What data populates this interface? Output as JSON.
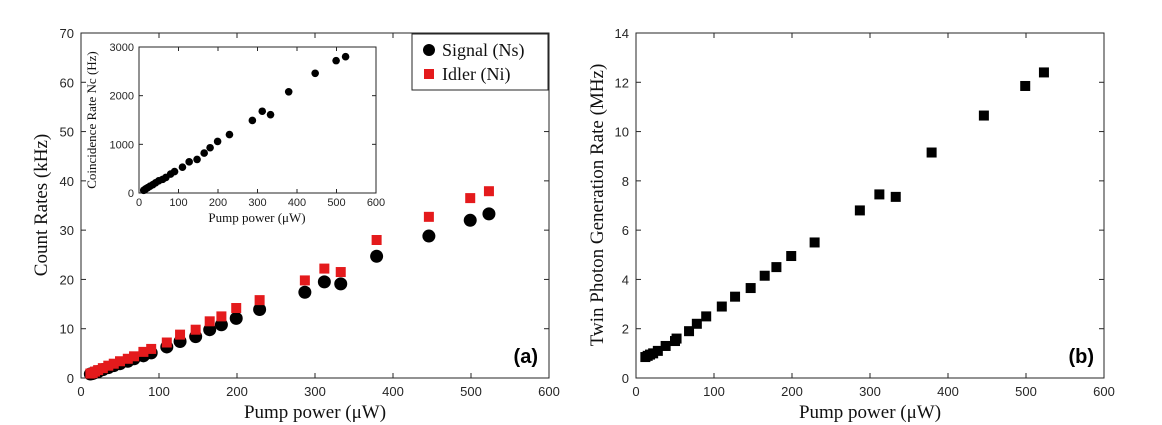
{
  "colors": {
    "signal": "#000000",
    "idler": "#e41a1c",
    "twin": "#000000"
  },
  "chart_data": [
    {
      "type": "scatter",
      "panel_label": "(a)",
      "xlabel": "Pump power (μW)",
      "ylabel": "Count Rates (kHz)",
      "xlim": [
        0,
        600
      ],
      "ylim": [
        0,
        70
      ],
      "xticks": [
        "0",
        "100",
        "200",
        "300",
        "400",
        "500",
        "600"
      ],
      "yticks": [
        "0",
        "10",
        "20",
        "30",
        "40",
        "50",
        "60",
        "70"
      ],
      "legend_position": "top-right",
      "grid": false,
      "series": [
        {
          "name": "Signal (Ns)",
          "marker": "circle",
          "x": [
            12,
            15,
            18,
            22,
            28,
            35,
            42,
            50,
            60,
            68,
            80,
            90,
            110,
            127,
            147,
            165,
            180,
            199,
            229,
            287,
            312,
            333,
            379,
            446,
            499,
            523
          ],
          "y": [
            0.8,
            0.9,
            1.1,
            1.3,
            1.7,
            2.1,
            2.5,
            2.9,
            3.4,
            3.9,
            4.5,
            5.1,
            6.3,
            7.4,
            8.4,
            9.8,
            10.8,
            12.1,
            13.9,
            17.4,
            19.5,
            19.1,
            24.7,
            28.8,
            32.0,
            33.3
          ]
        },
        {
          "name": "Idler (Ni)",
          "marker": "square",
          "x": [
            12,
            15,
            18,
            22,
            28,
            35,
            42,
            50,
            60,
            68,
            80,
            90,
            110,
            127,
            147,
            165,
            180,
            199,
            229,
            287,
            312,
            333,
            379,
            446,
            499,
            523
          ],
          "y": [
            0.9,
            1.0,
            1.3,
            1.6,
            2.0,
            2.5,
            2.9,
            3.4,
            3.9,
            4.4,
            5.3,
            5.9,
            7.2,
            8.8,
            9.8,
            11.5,
            12.5,
            14.2,
            15.8,
            19.8,
            22.2,
            21.5,
            28.0,
            32.7,
            36.5,
            37.9
          ]
        }
      ],
      "inset": {
        "type": "scatter",
        "xlabel": "Pump power (μW)",
        "ylabel": "Coincidence Rate Nc (Hz)",
        "xlim": [
          0,
          600
        ],
        "ylim": [
          0,
          3000
        ],
        "xticks": [
          "0",
          "100",
          "200",
          "300",
          "400",
          "500",
          "600"
        ],
        "yticks": [
          "0",
          "1000",
          "2000",
          "3000"
        ],
        "series": [
          {
            "marker": "circle",
            "x": [
              12,
              15,
              18,
              22,
              28,
              35,
              42,
              50,
              60,
              68,
              80,
              90,
              110,
              127,
              147,
              165,
              180,
              199,
              229,
              287,
              312,
              333,
              379,
              446,
              499,
              523
            ],
            "y": [
              55,
              70,
              90,
              110,
              140,
              170,
              210,
              250,
              280,
              320,
              390,
              440,
              530,
              640,
              690,
              820,
              930,
              1060,
              1200,
              1490,
              1680,
              1610,
              2080,
              2460,
              2720,
              2800
            ]
          }
        ]
      }
    },
    {
      "type": "scatter",
      "panel_label": "(b)",
      "xlabel": "Pump power (μW)",
      "ylabel": "Twin Photon Generation Rate (MHz)",
      "xlim": [
        0,
        600
      ],
      "ylim": [
        0,
        14
      ],
      "xticks": [
        "0",
        "100",
        "200",
        "300",
        "400",
        "500",
        "600"
      ],
      "yticks": [
        "0",
        "2",
        "4",
        "6",
        "8",
        "10",
        "12",
        "14"
      ],
      "grid": false,
      "series": [
        {
          "marker": "square",
          "x": [
            12,
            15,
            18,
            22,
            28,
            38,
            50,
            52,
            68,
            78,
            90,
            110,
            127,
            147,
            165,
            180,
            199,
            229,
            287,
            312,
            333,
            379,
            446,
            499,
            523
          ],
          "y": [
            0.85,
            0.9,
            0.95,
            1.0,
            1.1,
            1.3,
            1.5,
            1.6,
            1.9,
            2.2,
            2.5,
            2.9,
            3.3,
            3.65,
            4.15,
            4.5,
            4.95,
            5.5,
            6.8,
            7.45,
            7.35,
            9.15,
            10.65,
            11.85,
            12.4
          ]
        }
      ]
    }
  ]
}
